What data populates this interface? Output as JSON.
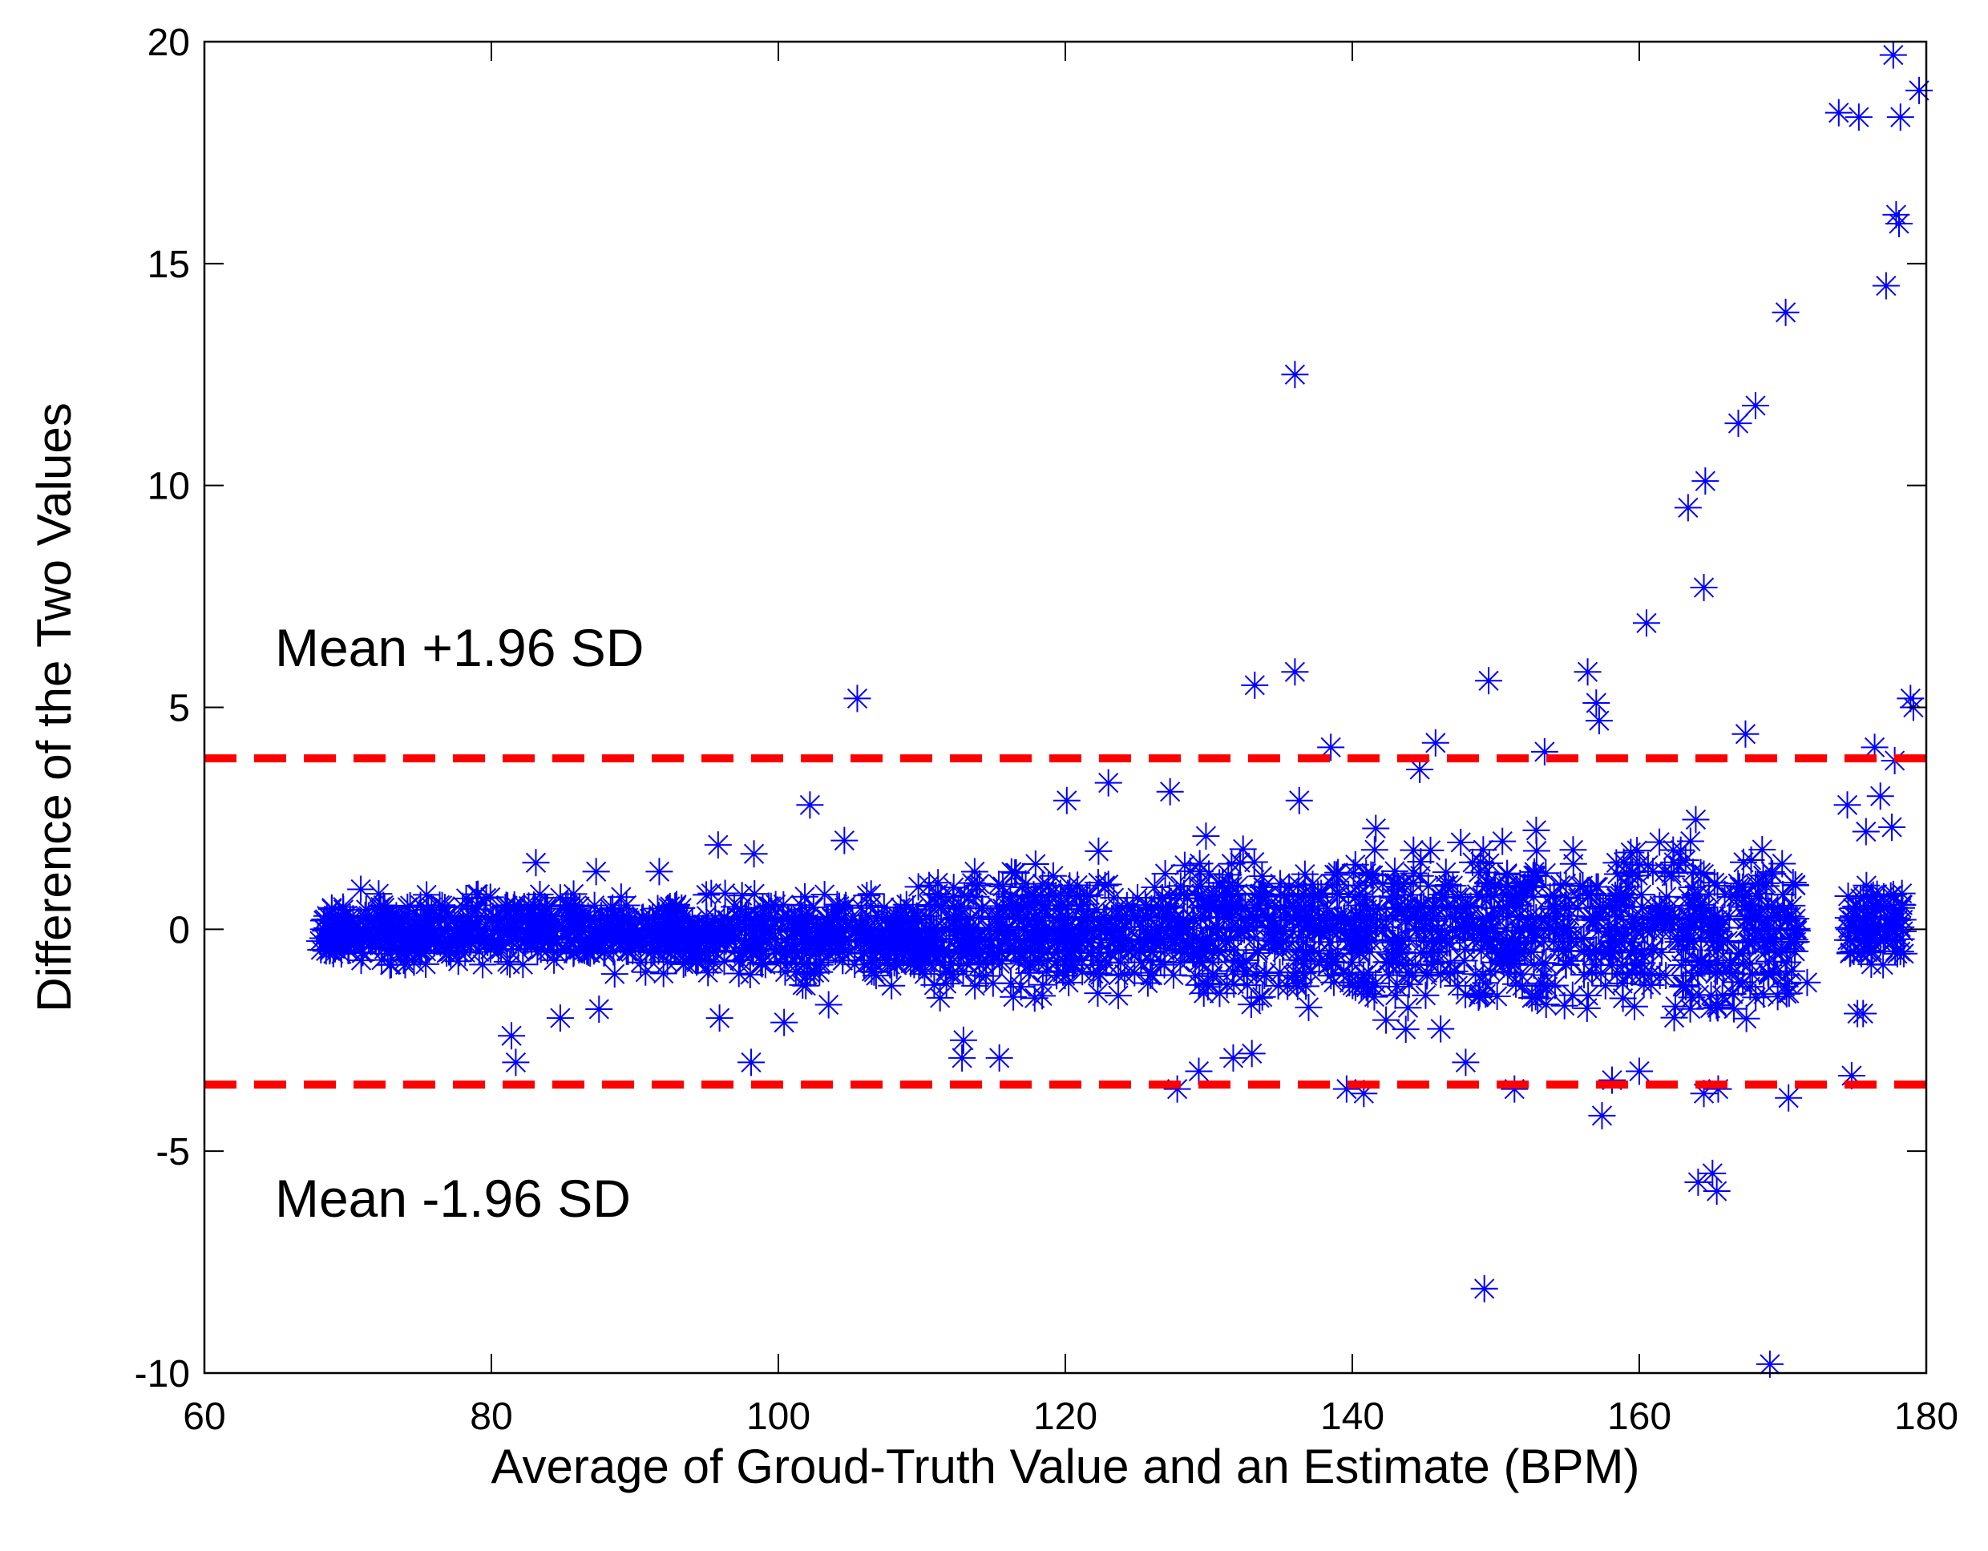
{
  "chart_data": {
    "type": "scatter",
    "title": "",
    "xlabel": "Average of Groud-Truth Value and an Estimate (BPM)",
    "ylabel": "Difference of the Two Values",
    "xlim": [
      60,
      180
    ],
    "ylim": [
      -10,
      20
    ],
    "x_ticks": [
      60,
      80,
      100,
      120,
      140,
      160,
      180
    ],
    "y_ticks": [
      -10,
      -5,
      0,
      5,
      10,
      15,
      20
    ],
    "grid": false,
    "marker": "asterisk",
    "marker_color": "#0000ff",
    "limit_line_color": "#ff0000",
    "limits": [
      {
        "label": "Mean +1.96 SD",
        "y": 3.85
      },
      {
        "label": "Mean -1.96 SD",
        "y": -3.5
      }
    ],
    "points": [
      [
        105.5,
        5.2
      ],
      [
        136.0,
        12.5
      ],
      [
        133.2,
        5.5
      ],
      [
        136.0,
        5.8
      ],
      [
        149.5,
        5.6
      ],
      [
        156.4,
        5.8
      ],
      [
        157.0,
        5.1
      ],
      [
        157.2,
        4.7
      ],
      [
        160.5,
        6.9
      ],
      [
        163.4,
        9.5
      ],
      [
        164.6,
        10.1
      ],
      [
        164.5,
        7.7
      ],
      [
        166.9,
        11.4
      ],
      [
        168.1,
        11.8
      ],
      [
        170.2,
        13.9
      ],
      [
        173.9,
        18.4
      ],
      [
        175.3,
        18.3
      ],
      [
        177.7,
        19.7
      ],
      [
        178.2,
        18.3
      ],
      [
        179.5,
        18.9
      ],
      [
        177.9,
        16.1
      ],
      [
        178.1,
        15.9
      ],
      [
        177.2,
        14.5
      ],
      [
        178.9,
        5.2
      ],
      [
        179.1,
        5.0
      ],
      [
        167.4,
        4.4
      ],
      [
        138.5,
        4.1
      ],
      [
        145.8,
        4.2
      ],
      [
        144.7,
        3.6
      ],
      [
        153.4,
        4.0
      ],
      [
        176.4,
        4.1
      ],
      [
        177.8,
        3.8
      ],
      [
        176.8,
        3.0
      ],
      [
        177.6,
        2.3
      ],
      [
        174.5,
        2.8
      ],
      [
        175.8,
        2.2
      ],
      [
        102.2,
        2.8
      ],
      [
        104.6,
        2.0
      ],
      [
        95.8,
        1.9
      ],
      [
        98.3,
        1.7
      ],
      [
        83.1,
        1.5
      ],
      [
        87.3,
        1.3
      ],
      [
        91.7,
        1.3
      ],
      [
        70.9,
        0.9
      ],
      [
        123.0,
        3.3
      ],
      [
        127.3,
        3.1
      ],
      [
        120.1,
        2.9
      ],
      [
        129.8,
        2.1
      ],
      [
        136.3,
        2.9
      ],
      [
        81.4,
        -2.4
      ],
      [
        81.7,
        -3.0
      ],
      [
        84.8,
        -2.0
      ],
      [
        87.5,
        -1.8
      ],
      [
        95.9,
        -2.0
      ],
      [
        98.1,
        -3.0
      ],
      [
        100.4,
        -2.1
      ],
      [
        103.5,
        -1.7
      ],
      [
        112.8,
        -2.9
      ],
      [
        115.4,
        -2.9
      ],
      [
        112.9,
        -2.5
      ],
      [
        127.8,
        -3.6
      ],
      [
        129.3,
        -3.2
      ],
      [
        131.7,
        -2.9
      ],
      [
        133.0,
        -2.8
      ],
      [
        139.6,
        -3.6
      ],
      [
        140.8,
        -3.7
      ],
      [
        147.9,
        -3.0
      ],
      [
        151.3,
        -3.6
      ],
      [
        157.4,
        -4.2
      ],
      [
        158.1,
        -3.4
      ],
      [
        160.0,
        -3.2
      ],
      [
        164.5,
        -3.7
      ],
      [
        165.5,
        -3.6
      ],
      [
        170.4,
        -3.8
      ],
      [
        164.1,
        -5.7
      ],
      [
        165.1,
        -5.5
      ],
      [
        165.4,
        -5.9
      ],
      [
        149.2,
        -8.1
      ],
      [
        169.1,
        -9.8
      ],
      [
        171.7,
        -1.2
      ],
      [
        174.8,
        -3.3
      ],
      [
        175.2,
        -1.9
      ],
      [
        175.6,
        -1.9
      ],
      [
        176.0,
        -0.3
      ]
    ],
    "bulk_ranges": [
      {
        "x": [
          68,
          90
        ],
        "y": [
          -1.0,
          0.9
        ]
      },
      {
        "x": [
          90,
          110
        ],
        "y": [
          -1.4,
          1.2
        ]
      },
      {
        "x": [
          110,
          128
        ],
        "y": [
          -1.9,
          1.8
        ]
      },
      {
        "x": [
          128,
          140
        ],
        "y": [
          -2.3,
          2.3
        ]
      },
      {
        "x": [
          140,
          160
        ],
        "y": [
          -2.6,
          2.6
        ]
      },
      {
        "x": [
          160,
          171
        ],
        "y": [
          -2.4,
          2.4
        ]
      },
      {
        "x": [
          174.5,
          178.5
        ],
        "y": [
          -1.2,
          1.5
        ]
      }
    ]
  }
}
